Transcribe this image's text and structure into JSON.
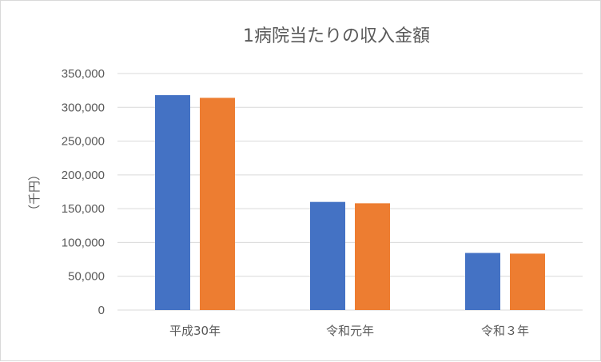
{
  "chart_data": {
    "type": "bar",
    "title": "1病院当たりの収入金額",
    "ylabel": "（千円）",
    "xlabel": "",
    "categories": [
      "平成30年",
      "令和元年",
      "令和３年"
    ],
    "series": [
      {
        "color": "#4472c4",
        "values": [
          318000,
          160000,
          84500
        ]
      },
      {
        "color": "#ed7d31",
        "values": [
          314000,
          158000,
          83500
        ]
      }
    ],
    "ylim": [
      0,
      350000
    ],
    "yticks": [
      0,
      50000,
      100000,
      150000,
      200000,
      250000,
      300000,
      350000
    ],
    "ytick_labels": [
      "0",
      "50,000",
      "100,000",
      "150,000",
      "200,000",
      "250,000",
      "300,000",
      "350,000"
    ],
    "grid": true,
    "legend": "none"
  }
}
